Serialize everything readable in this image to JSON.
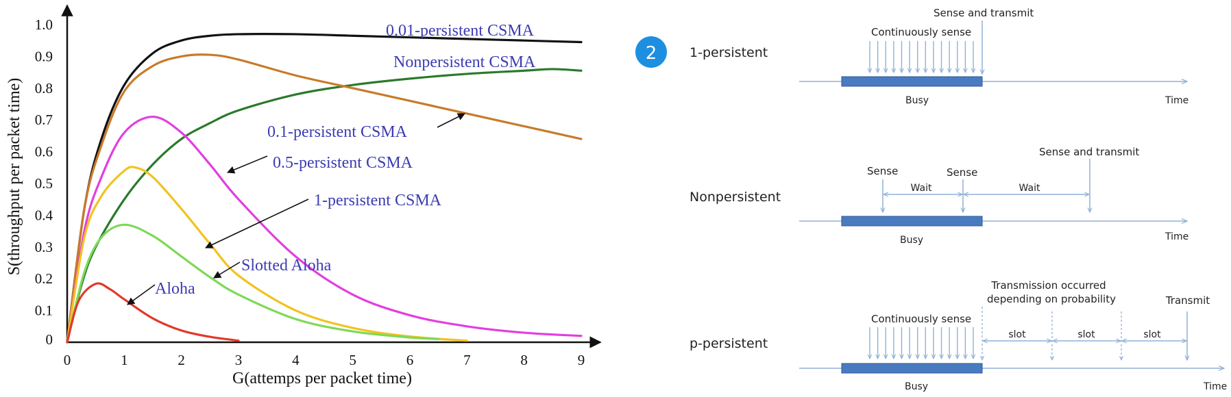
{
  "chart_data": {
    "type": "line",
    "xlabel": "G(attemps per packet time)",
    "ylabel": "S(throughput per packet time)",
    "xlim": [
      0,
      9
    ],
    "ylim": [
      0,
      1.0
    ],
    "x_ticks": [
      "0",
      "1",
      "2",
      "3",
      "4",
      "5",
      "6",
      "7",
      "8",
      "9"
    ],
    "y_ticks": [
      "0",
      "0.1",
      "0.2",
      "0.3",
      "0.4",
      "0.5",
      "0.6",
      "0.7",
      "0.8",
      "0.9",
      "1.0"
    ],
    "series": [
      {
        "name": "0.01-persistent CSMA",
        "color": "#111111",
        "label_color": "#3b3bb3",
        "x": [
          0,
          0.3,
          0.6,
          1,
          1.5,
          2,
          2.5,
          3,
          4,
          5,
          6,
          7,
          8,
          9
        ],
        "y": [
          0,
          0.42,
          0.64,
          0.81,
          0.91,
          0.95,
          0.965,
          0.97,
          0.97,
          0.965,
          0.96,
          0.955,
          0.95,
          0.945
        ]
      },
      {
        "name": "Nonpersistent CSMA",
        "color": "#2a7a2a",
        "label_color": "#3b3bb3",
        "x": [
          0,
          0.25,
          0.5,
          1,
          1.5,
          2,
          2.5,
          3,
          4,
          5,
          6,
          7,
          8,
          8.5,
          9
        ],
        "y": [
          0,
          0.18,
          0.3,
          0.45,
          0.56,
          0.64,
          0.69,
          0.73,
          0.78,
          0.81,
          0.83,
          0.845,
          0.855,
          0.86,
          0.855
        ]
      },
      {
        "name": "0.1-persistent CSMA",
        "color": "#c87a2a",
        "label_color": "#3b3bb3",
        "x": [
          0,
          0.3,
          0.6,
          1,
          1.5,
          2,
          2.5,
          3,
          4,
          5,
          6,
          7,
          8,
          9
        ],
        "y": [
          0,
          0.42,
          0.62,
          0.79,
          0.87,
          0.9,
          0.905,
          0.89,
          0.84,
          0.8,
          0.76,
          0.72,
          0.68,
          0.64
        ]
      },
      {
        "name": "0.5-persistent CSMA",
        "color": "#e23ee0",
        "label_color": "#3b3bb3",
        "x": [
          0,
          0.3,
          0.6,
          1,
          1.5,
          2,
          2.5,
          3,
          4,
          5,
          6,
          7,
          8,
          9
        ],
        "y": [
          0,
          0.35,
          0.52,
          0.66,
          0.71,
          0.66,
          0.56,
          0.45,
          0.27,
          0.15,
          0.085,
          0.05,
          0.03,
          0.02
        ]
      },
      {
        "name": "1-persistent CSMA",
        "color": "#f2c21e",
        "label_color": "#3b3bb3",
        "x": [
          0,
          0.3,
          0.6,
          1,
          1.2,
          1.5,
          2,
          2.5,
          3,
          4,
          5,
          6,
          7
        ],
        "y": [
          0,
          0.33,
          0.46,
          0.54,
          0.55,
          0.52,
          0.42,
          0.31,
          0.21,
          0.1,
          0.045,
          0.018,
          0.005
        ]
      },
      {
        "name": "Slotted Aloha",
        "color": "#7ed957",
        "label_color": "#3b3bb3",
        "x": [
          0,
          0.3,
          0.6,
          1,
          1.5,
          2,
          2.5,
          3,
          4,
          5,
          6,
          6.5
        ],
        "y": [
          0,
          0.22,
          0.33,
          0.37,
          0.335,
          0.27,
          0.205,
          0.15,
          0.073,
          0.034,
          0.015,
          0.01
        ]
      },
      {
        "name": "Aloha",
        "color": "#e03a2a",
        "label_color": "#3b3bb3",
        "x": [
          0,
          0.2,
          0.5,
          0.75,
          1,
          1.5,
          2,
          2.5,
          3
        ],
        "y": [
          0,
          0.13,
          0.184,
          0.167,
          0.135,
          0.075,
          0.037,
          0.017,
          0.005
        ]
      }
    ]
  },
  "diagram": {
    "badge": "2",
    "rows": [
      {
        "name": "1-persistent",
        "top_label": "Sense and transmit",
        "sense_label": "Continuously sense",
        "busy_label": "Busy",
        "time_label": "Time"
      },
      {
        "name": "Nonpersistent",
        "top_label": "Sense and transmit",
        "sense1": "Sense",
        "sense2": "Sense",
        "wait1": "Wait",
        "wait2": "Wait",
        "busy_label": "Busy",
        "time_label": "Time"
      },
      {
        "name": "p-persistent",
        "sense_label": "Continuously sense",
        "note_line1": "Transmission occurred",
        "note_line2": "depending on probability",
        "transmit_label": "Transmit",
        "slot1": "slot",
        "slot2": "slot",
        "slot3": "slot",
        "busy_label": "Busy",
        "time_label": "Time"
      }
    ]
  }
}
